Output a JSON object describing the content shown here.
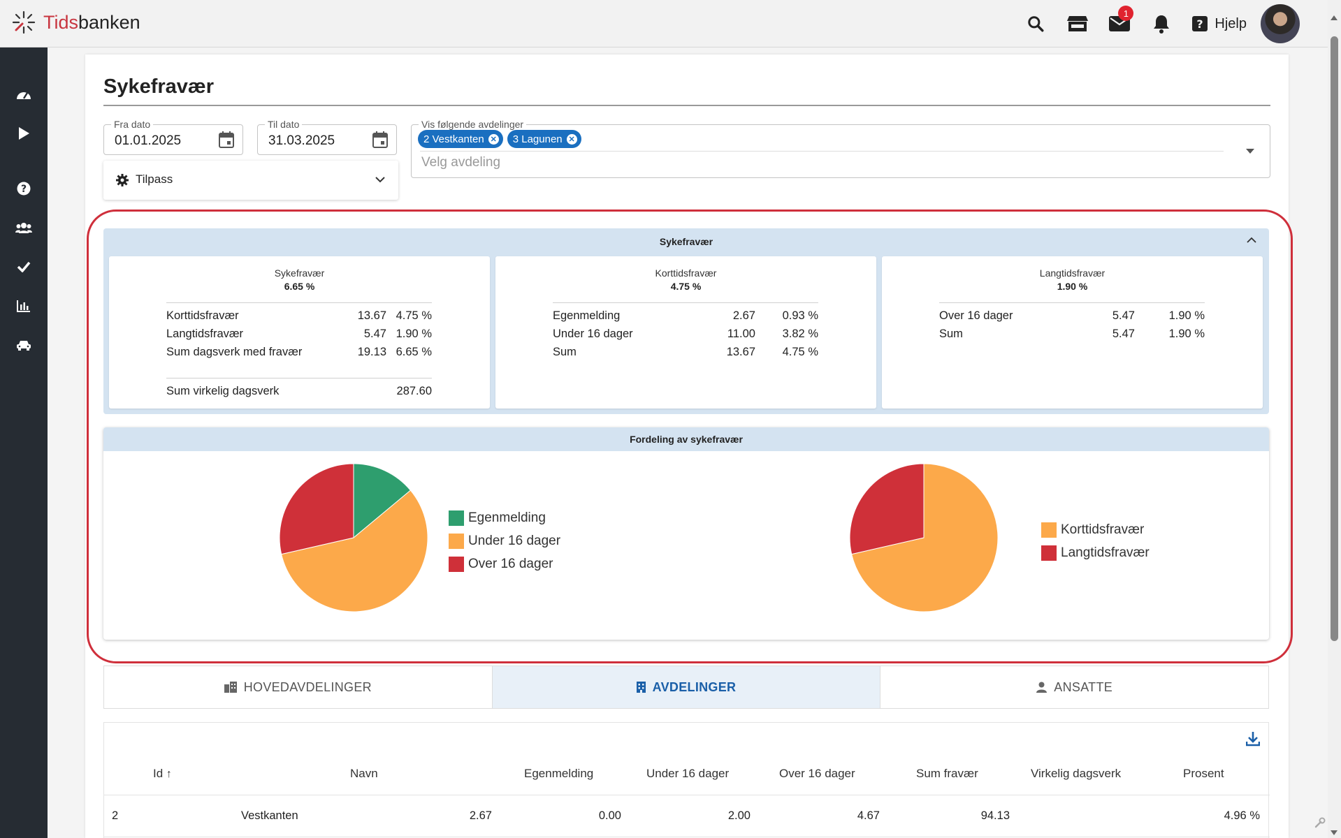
{
  "header": {
    "logo_prefix": "Tids",
    "logo_suffix": "banken",
    "mail_badge": "1",
    "help_label": "Hjelp",
    "icons": [
      "search-icon",
      "store-icon",
      "mail-icon",
      "bell-icon",
      "help-icon"
    ]
  },
  "sidebar": {
    "items": [
      "dashboard-icon",
      "play-icon",
      "help-circle-icon",
      "users-icon",
      "check-icon",
      "chart-icon",
      "car-icon"
    ]
  },
  "page": {
    "title": "Sykefravær"
  },
  "filters": {
    "fra_label": "Fra dato",
    "fra_value": "01.01.2025",
    "til_label": "Til dato",
    "til_value": "31.03.2025",
    "tilpass_label": "Tilpass",
    "avdelinger_label": "Vis følgende avdelinger",
    "chips": [
      "2 Vestkanten",
      "3 Lagunen"
    ],
    "avdeling_placeholder": "Velg avdeling"
  },
  "stats": {
    "panel_title": "Sykefravær",
    "cards": [
      {
        "title": "Sykefravær",
        "value": "6.65 %",
        "rows": [
          [
            "Korttidsfravær",
            "13.67",
            "4.75 %"
          ],
          [
            "Langtidsfravær",
            "5.47",
            "1.90 %"
          ],
          [
            "Sum dagsverk med fravær",
            "19.13",
            "6.65 %"
          ]
        ],
        "footer": [
          "Sum virkelig dagsverk",
          "287.60"
        ]
      },
      {
        "title": "Korttidsfravær",
        "value": "4.75 %",
        "rows": [
          [
            "Egenmelding",
            "2.67",
            "0.93 %"
          ],
          [
            "Under 16 dager",
            "11.00",
            "3.82 %"
          ],
          [
            "Sum",
            "13.67",
            "4.75 %"
          ]
        ]
      },
      {
        "title": "Langtidsfravær",
        "value": "1.90 %",
        "rows": [
          [
            "Over 16 dager",
            "5.47",
            "1.90 %"
          ],
          [
            "Sum",
            "5.47",
            "1.90 %"
          ]
        ]
      }
    ]
  },
  "distribution": {
    "title": "Fordeling av sykefravær"
  },
  "chart_data": [
    {
      "type": "pie",
      "labels": [
        "Egenmelding",
        "Under 16 dager",
        "Over 16 dager"
      ],
      "values": [
        2.67,
        11.0,
        5.47
      ],
      "colors": [
        "#2e9e6e",
        "#fca94a",
        "#cf3039"
      ]
    },
    {
      "type": "pie",
      "labels": [
        "Korttidsfravær",
        "Langtidsfravær"
      ],
      "values": [
        13.67,
        5.47
      ],
      "colors": [
        "#fca94a",
        "#cf3039"
      ]
    }
  ],
  "tabs": [
    {
      "label": "HOVEDAVDELINGER",
      "icon": "building-icon",
      "active": false
    },
    {
      "label": "AVDELINGER",
      "icon": "building-icon",
      "active": true
    },
    {
      "label": "ANSATTE",
      "icon": "person-icon",
      "active": false
    }
  ],
  "table": {
    "columns": [
      "Id",
      "Navn",
      "Egenmelding",
      "Under 16 dager",
      "Over 16 dager",
      "Sum fravær",
      "Virkelig dagsverk",
      "Prosent"
    ],
    "rows": [
      [
        "2",
        "Vestkanten",
        "2.67",
        "0.00",
        "2.00",
        "4.67",
        "94.13",
        "4.96 %"
      ]
    ]
  }
}
